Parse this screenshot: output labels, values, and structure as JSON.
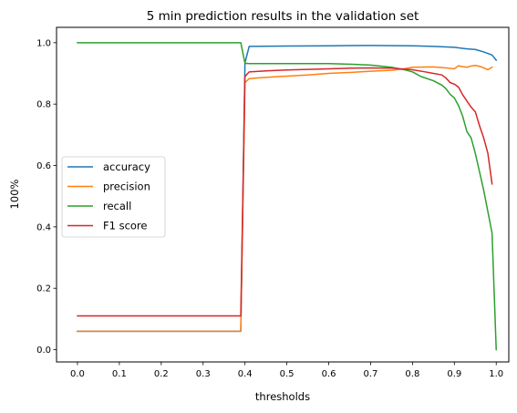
{
  "chart_data": {
    "type": "line",
    "title": "5 min prediction results in the validation set",
    "xlabel": "thresholds",
    "ylabel": "100%",
    "xlim": [
      -0.05,
      1.03
    ],
    "ylim": [
      -0.04,
      1.05
    ],
    "xticks": [
      0.0,
      0.1,
      0.2,
      0.3,
      0.4,
      0.5,
      0.6,
      0.7,
      0.8,
      0.9,
      1.0
    ],
    "xtick_labels": [
      "0.0",
      "0.1",
      "0.2",
      "0.3",
      "0.4",
      "0.5",
      "0.6",
      "0.7",
      "0.8",
      "0.9",
      "1.0"
    ],
    "yticks": [
      0.0,
      0.2,
      0.4,
      0.6,
      0.8,
      1.0
    ],
    "ytick_labels": [
      "0.0",
      "0.2",
      "0.4",
      "0.6",
      "0.8",
      "1.0"
    ],
    "grid": false,
    "legend_position": "center-left",
    "series": [
      {
        "name": "accuracy",
        "color": "#1f77b4",
        "x": [
          0.0,
          0.39,
          0.4,
          0.41,
          0.5,
          0.6,
          0.7,
          0.8,
          0.85,
          0.9,
          0.93,
          0.95,
          0.97,
          0.99,
          1.0
        ],
        "y": [
          0.06,
          0.06,
          0.935,
          0.988,
          0.989,
          0.99,
          0.991,
          0.99,
          0.988,
          0.985,
          0.98,
          0.978,
          0.97,
          0.96,
          0.943
        ]
      },
      {
        "name": "precision",
        "color": "#ff7f0e",
        "x": [
          0.0,
          0.39,
          0.4,
          0.41,
          0.43,
          0.45,
          0.47,
          0.5,
          0.55,
          0.6,
          0.65,
          0.7,
          0.75,
          0.78,
          0.8,
          0.85,
          0.88,
          0.9,
          0.91,
          0.92,
          0.93,
          0.94,
          0.95,
          0.96,
          0.97,
          0.98,
          0.99
        ],
        "y": [
          0.06,
          0.06,
          0.87,
          0.883,
          0.885,
          0.887,
          0.889,
          0.891,
          0.895,
          0.9,
          0.903,
          0.907,
          0.91,
          0.915,
          0.92,
          0.921,
          0.918,
          0.915,
          0.925,
          0.922,
          0.92,
          0.924,
          0.926,
          0.923,
          0.918,
          0.912,
          0.92
        ]
      },
      {
        "name": "recall",
        "color": "#2ca02c",
        "x": [
          0.0,
          0.39,
          0.4,
          0.41,
          0.5,
          0.6,
          0.65,
          0.7,
          0.75,
          0.78,
          0.8,
          0.82,
          0.85,
          0.87,
          0.88,
          0.89,
          0.9,
          0.91,
          0.92,
          0.93,
          0.94,
          0.95,
          0.96,
          0.97,
          0.98,
          0.99,
          1.0
        ],
        "y": [
          1.0,
          1.0,
          0.933,
          0.932,
          0.932,
          0.932,
          0.93,
          0.927,
          0.92,
          0.912,
          0.905,
          0.89,
          0.876,
          0.862,
          0.85,
          0.832,
          0.82,
          0.795,
          0.76,
          0.71,
          0.69,
          0.64,
          0.58,
          0.52,
          0.45,
          0.38,
          0.0
        ]
      },
      {
        "name": "F1 score",
        "color": "#d62728",
        "x": [
          0.0,
          0.39,
          0.4,
          0.41,
          0.45,
          0.5,
          0.55,
          0.6,
          0.65,
          0.7,
          0.75,
          0.78,
          0.8,
          0.83,
          0.85,
          0.87,
          0.88,
          0.89,
          0.9,
          0.91,
          0.92,
          0.93,
          0.94,
          0.95,
          0.96,
          0.97,
          0.98,
          0.99
        ],
        "y": [
          0.11,
          0.11,
          0.89,
          0.905,
          0.908,
          0.911,
          0.913,
          0.915,
          0.917,
          0.918,
          0.917,
          0.914,
          0.912,
          0.905,
          0.9,
          0.895,
          0.885,
          0.87,
          0.865,
          0.855,
          0.83,
          0.81,
          0.79,
          0.775,
          0.73,
          0.69,
          0.64,
          0.54
        ]
      }
    ]
  }
}
